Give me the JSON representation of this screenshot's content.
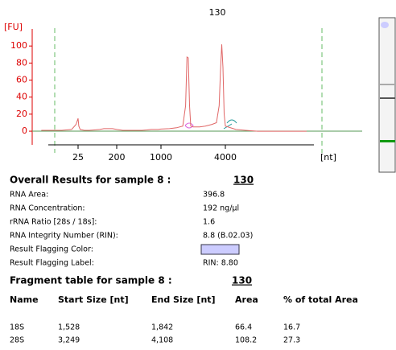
{
  "chart_data": {
    "type": "line",
    "title": "130",
    "y_label": "[FU]",
    "x_label": "[nt]",
    "x": [
      12,
      18,
      22,
      24,
      25,
      26,
      28,
      35,
      45,
      60,
      80,
      100,
      130,
      160,
      200,
      250,
      300,
      400,
      500,
      600,
      700,
      800,
      900,
      1000,
      1200,
      1400,
      1600,
      1700,
      1750,
      1800,
      1850,
      1900,
      2000,
      2300,
      2600,
      3000,
      3300,
      3500,
      3600,
      3700,
      3800,
      3900,
      4000,
      4300,
      4600,
      5000,
      5500,
      6000,
      7000
    ],
    "values": [
      1,
      1,
      2,
      8,
      15,
      6,
      2,
      1,
      1,
      1.5,
      2,
      3,
      3,
      3,
      2,
      1,
      1,
      1,
      1,
      1.5,
      2,
      2,
      2,
      2.5,
      3,
      4,
      6,
      30,
      87,
      86,
      30,
      6,
      5,
      5,
      6,
      8,
      10,
      30,
      70,
      102,
      75,
      20,
      6,
      2,
      1,
      0,
      0,
      0,
      0
    ],
    "color": "#e06666",
    "axis_color": "#dd0000",
    "xlim": [
      10,
      8000
    ],
    "xticks": [
      25,
      200,
      1000,
      4000
    ],
    "ylim": [
      -16,
      120
    ],
    "yticks": [
      0,
      20,
      40,
      60,
      80,
      100
    ],
    "grid": false
  },
  "results": {
    "title": "Overall Results for sample 8 :",
    "sample": "130",
    "rows": [
      {
        "label": "RNA Area:",
        "value": "396.8"
      },
      {
        "label": "RNA Concentration:",
        "value": "192 ng/µl"
      },
      {
        "label": "rRNA Ratio [28s / 18s]:",
        "value": "1.6"
      },
      {
        "label": "RNA Integrity Number (RIN):",
        "value": "8.8  (B.02.03)"
      },
      {
        "label": "Result Flagging Color:",
        "color": "#ccccff"
      },
      {
        "label": "Result Flagging Label:",
        "value": "RIN: 8.80"
      }
    ]
  },
  "fragment_table": {
    "title": "Fragment table for sample 8 :",
    "sample": "130",
    "columns": [
      "Name",
      "Start Size [nt]",
      "End Size [nt]",
      "Area",
      "% of total Area"
    ],
    "rows": [
      [
        "18S",
        "1,528",
        "1,842",
        66.4,
        16.7
      ],
      [
        "28S",
        "3,249",
        "4,108",
        108.2,
        27.3
      ]
    ]
  }
}
